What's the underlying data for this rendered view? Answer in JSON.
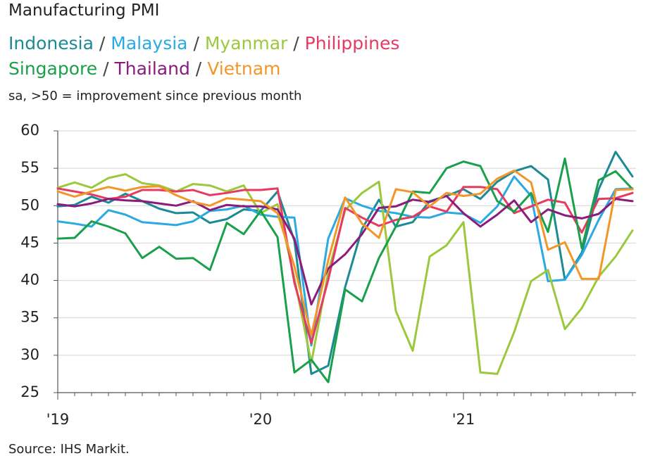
{
  "chart_data": {
    "type": "line",
    "title": "Manufacturing PMI",
    "subtitle": "sa, >50 = improvement since previous month",
    "source": "Source: IHS Markit.",
    "legend_separator": "/",
    "categories": [
      "'19",
      null,
      null,
      null,
      null,
      null,
      null,
      null,
      null,
      null,
      null,
      null,
      "'20",
      null,
      null,
      null,
      null,
      null,
      null,
      null,
      null,
      null,
      null,
      null,
      "'21",
      null,
      null,
      null,
      null,
      null,
      null,
      null,
      null,
      null,
      null
    ],
    "ylim": [
      25,
      60
    ],
    "yticks": [
      25,
      30,
      35,
      40,
      45,
      50,
      55,
      60
    ],
    "grid": true,
    "series": [
      {
        "name": "Indonesia",
        "color": "#1b8a94",
        "values": [
          49.9,
          50.1,
          51.2,
          50.4,
          51.6,
          50.6,
          49.6,
          49.0,
          49.1,
          47.7,
          48.2,
          49.5,
          49.3,
          51.9,
          45.3,
          27.5,
          28.6,
          39.1,
          46.9,
          50.8,
          47.2,
          47.8,
          50.6,
          51.3,
          52.2,
          50.9,
          53.2,
          54.6,
          55.3,
          53.5,
          40.1,
          43.7,
          52.2,
          57.2,
          53.9
        ]
      },
      {
        "name": "Malaysia",
        "color": "#2aaae2",
        "values": [
          47.9,
          47.6,
          47.2,
          49.4,
          48.8,
          47.8,
          47.6,
          47.4,
          47.9,
          49.3,
          49.5,
          50.0,
          48.8,
          48.5,
          48.4,
          31.3,
          45.6,
          51.0,
          50.0,
          49.3,
          49.0,
          48.5,
          48.4,
          49.1,
          48.9,
          47.7,
          49.9,
          53.9,
          51.3,
          39.9,
          40.1,
          43.4,
          48.1,
          52.2,
          52.3
        ]
      },
      {
        "name": "Myanmar",
        "color": "#9cc83e",
        "values": [
          52.4,
          53.1,
          52.4,
          53.7,
          54.2,
          53.0,
          52.7,
          51.9,
          52.9,
          52.7,
          51.9,
          52.7,
          49.0,
          50.2,
          40.3,
          29.0,
          41.1,
          49.4,
          51.7,
          53.2,
          35.9,
          30.6,
          43.2,
          44.7,
          47.8,
          27.7,
          27.5,
          33.1,
          39.9,
          41.4,
          33.5,
          36.3,
          40.5,
          43.2,
          46.7
        ]
      },
      {
        "name": "Philippines",
        "color": "#e63a60",
        "values": [
          52.3,
          51.9,
          51.5,
          50.9,
          51.2,
          52.1,
          52.1,
          51.9,
          52.1,
          51.4,
          51.7,
          52.1,
          52.1,
          52.3,
          39.7,
          31.6,
          40.1,
          49.7,
          48.4,
          47.3,
          48.1,
          48.5,
          49.9,
          49.2,
          52.5,
          52.5,
          52.2,
          49.0,
          49.9,
          50.8,
          50.4,
          46.4,
          50.9,
          51.0,
          51.7
        ]
      },
      {
        "name": "Singapore",
        "color": "#1aa04a",
        "values": [
          45.6,
          45.7,
          47.9,
          47.2,
          46.3,
          43.0,
          44.5,
          42.9,
          43.0,
          41.4,
          47.7,
          46.2,
          49.3,
          45.8,
          27.7,
          29.4,
          26.4,
          38.8,
          37.2,
          43.0,
          47.2,
          51.9,
          51.7,
          55.0,
          55.9,
          55.3,
          50.6,
          49.2,
          51.7,
          46.5,
          56.3,
          44.3,
          53.4,
          54.6,
          52.2
        ]
      },
      {
        "name": "Thailand",
        "color": "#8a1c7c",
        "values": [
          50.2,
          49.9,
          50.3,
          50.9,
          50.7,
          50.6,
          50.3,
          50.0,
          50.6,
          49.4,
          50.1,
          49.9,
          49.9,
          49.5,
          45.6,
          36.8,
          41.6,
          43.5,
          46.2,
          49.7,
          49.9,
          50.8,
          50.5,
          51.3,
          49.0,
          47.2,
          48.8,
          50.7,
          47.8,
          49.5,
          48.7,
          48.3,
          48.9,
          50.9,
          50.6
        ]
      },
      {
        "name": "Vietnam",
        "color": "#f39629",
        "values": [
          51.9,
          51.2,
          51.9,
          52.5,
          52.0,
          52.5,
          52.6,
          51.4,
          50.5,
          50.0,
          51.0,
          50.8,
          50.6,
          49.0,
          41.9,
          32.7,
          42.7,
          51.1,
          47.6,
          45.7,
          52.2,
          51.8,
          49.9,
          51.7,
          51.3,
          51.6,
          53.6,
          54.7,
          53.1,
          44.1,
          45.1,
          40.2,
          40.2,
          52.1,
          52.2
        ]
      }
    ]
  }
}
